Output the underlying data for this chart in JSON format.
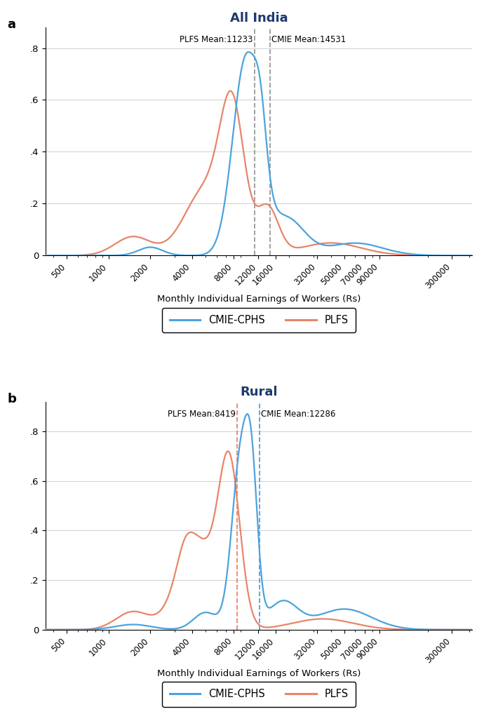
{
  "panel_a": {
    "title": "All India",
    "plfs_mean": 11233,
    "cmie_mean": 14531,
    "plfs_mean_label": "PLFS Mean:11233",
    "cmie_mean_label": "CMIE Mean:14531",
    "vline_color_plfs": "#999999",
    "vline_color_cmie": "#999999",
    "ylim": [
      0,
      0.88
    ],
    "yticks": [
      0,
      0.2,
      0.4,
      0.6,
      0.8
    ],
    "ytick_labels": [
      "0",
      ".2",
      ".4",
      ".6",
      ".8"
    ],
    "panel_label": "a"
  },
  "panel_b": {
    "title": "Rural",
    "plfs_mean": 8419,
    "cmie_mean": 12286,
    "plfs_mean_label": "PLFS Mean:8419",
    "cmie_mean_label": "CMIE Mean:12286",
    "vline_color_plfs": "#E8856A",
    "vline_color_cmie": "#4CA3DD",
    "ylim": [
      0,
      0.92
    ],
    "yticks": [
      0,
      0.2,
      0.4,
      0.6,
      0.8
    ],
    "ytick_labels": [
      "0",
      ".2",
      ".4",
      ".6",
      ".8"
    ],
    "panel_label": "b"
  },
  "xticks": [
    500,
    1000,
    2000,
    4000,
    8000,
    12000,
    16000,
    32000,
    50000,
    70000,
    90000,
    300000
  ],
  "xticklabels": [
    "500",
    "1000",
    "2000",
    "4000",
    "8000",
    "12000",
    "16000",
    "32000",
    "50000",
    "70000",
    "90000",
    "300000"
  ],
  "xlabel": "Monthly Individual Earnings of Workers (Rs)",
  "cmie_color": "#4CA3DD",
  "plfs_color": "#E8856A",
  "title_color": "#1F3A6E",
  "legend_labels": [
    "CMIE-CPHS",
    "PLFS"
  ],
  "background_color": "#ffffff",
  "grid_color": "#d0d0d0"
}
